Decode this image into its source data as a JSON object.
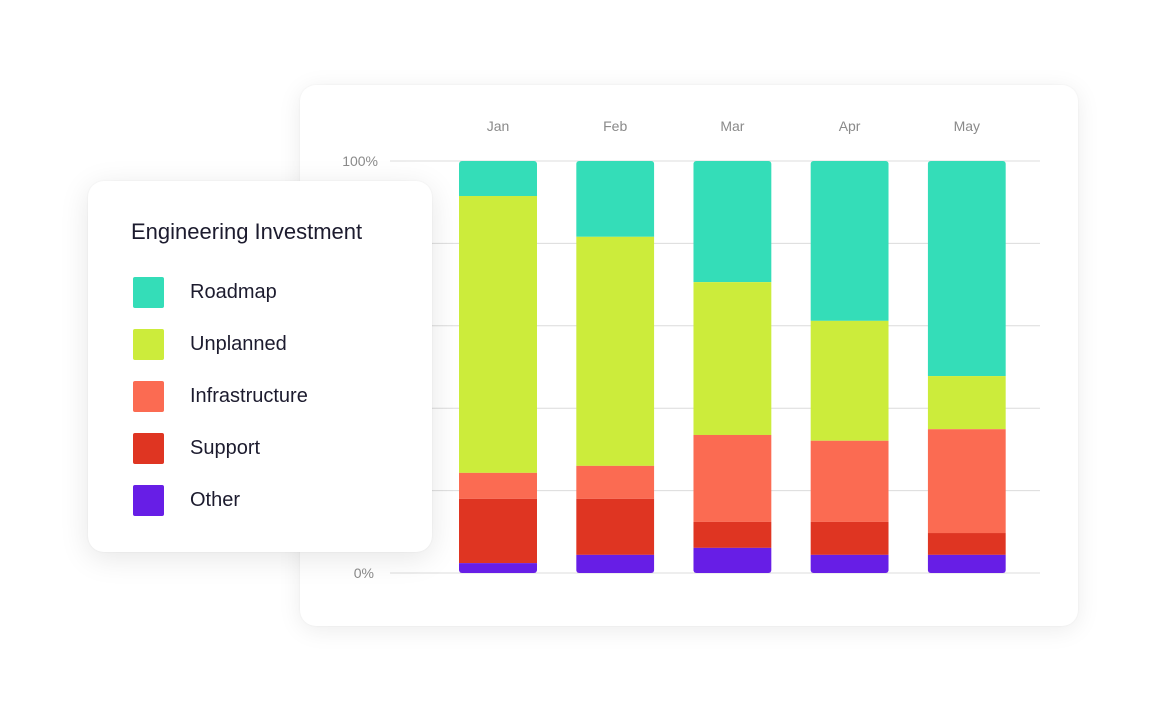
{
  "chart_data": {
    "type": "bar",
    "stacked": true,
    "title": "Engineering Investment",
    "categories": [
      "Jan",
      "Feb",
      "Mar",
      "Apr",
      "May"
    ],
    "y_tick_labels": [
      "0%",
      "100%"
    ],
    "ylim": [
      0,
      100
    ],
    "grid": true,
    "gridline_step": 20,
    "legend_placement": "left",
    "series": [
      {
        "name": "Roadmap",
        "color": "#34ddb8",
        "values": [
          8.5,
          18.4,
          29.4,
          38.8,
          52.2
        ]
      },
      {
        "name": "Unplanned",
        "color": "#ccec3b",
        "values": [
          67.2,
          55.6,
          37.1,
          29.1,
          12.9
        ]
      },
      {
        "name": "Infrastructure",
        "color": "#fb6b52",
        "values": [
          6.3,
          8.0,
          21.1,
          19.7,
          25.2
        ]
      },
      {
        "name": "Support",
        "color": "#df3522",
        "values": [
          15.6,
          13.6,
          6.3,
          8.0,
          5.3
        ]
      },
      {
        "name": "Other",
        "color": "#671ee6",
        "values": [
          2.4,
          4.4,
          6.1,
          4.4,
          4.4
        ]
      }
    ]
  }
}
